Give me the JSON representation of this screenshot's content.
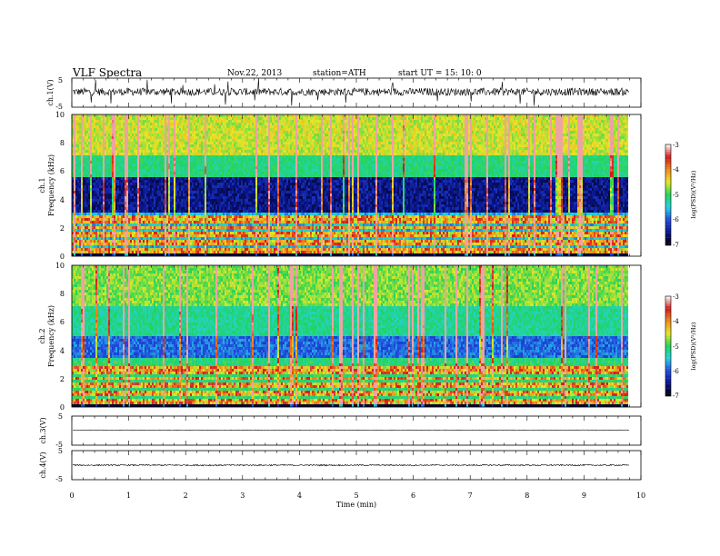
{
  "header": {
    "title": "VLF  Spectra",
    "date": "Nov.22, 2013",
    "station": "station=ATH",
    "start": "start  UT  =    15: 10: 0"
  },
  "colors": {
    "background": "#ffffff",
    "axis": "#000000",
    "colormap": [
      "#000000",
      "#0a1488",
      "#2248e0",
      "#24d2e0",
      "#22d45a",
      "#e6e628",
      "#f08a20",
      "#d21a1a",
      "#ffffff"
    ]
  },
  "chart_data": [
    {
      "type": "line",
      "name": "ch1-waveform",
      "ylabel": "ch.1(V)",
      "ylim": [
        -5,
        5
      ],
      "yticks": [
        "5",
        "-5"
      ],
      "baseline": 0.3,
      "noise_amplitude": 1.3,
      "xlim": [
        0,
        10
      ],
      "data_end": 9.8
    },
    {
      "type": "heatmap",
      "name": "ch1-spectrogram",
      "ylabel_channel": "ch.1",
      "ylabel": "Frequency  (kHz)",
      "ylim": [
        0,
        10
      ],
      "yticks": [
        "0",
        "2",
        "4",
        "6",
        "8",
        "10"
      ],
      "xlim": [
        0,
        10
      ],
      "data_end": 9.8,
      "colorbar": {
        "label": "log(PSD)(V²/Hz)",
        "range": [
          -7,
          -3
        ],
        "ticks": [
          "-3",
          "-4",
          "-5",
          "-6",
          "-7"
        ]
      }
    },
    {
      "type": "heatmap",
      "name": "ch2-spectrogram",
      "ylabel_channel": "ch.2",
      "ylabel": "Frequency  (kHz)",
      "ylim": [
        0,
        10
      ],
      "yticks": [
        "0",
        "2",
        "4",
        "6",
        "8",
        "10"
      ],
      "xlim": [
        0,
        10
      ],
      "data_end": 9.8,
      "colorbar": {
        "label": "log(PSD)(V²/Hz)",
        "range": [
          -7,
          -3
        ],
        "ticks": [
          "-3",
          "-4",
          "-5",
          "-6",
          "-7"
        ]
      }
    },
    {
      "type": "line",
      "name": "ch3-waveform",
      "ylabel": "ch.3(V)",
      "ylim": [
        -5,
        5
      ],
      "yticks": [
        "5",
        "-5"
      ],
      "baseline": 0.2,
      "noise_amplitude": 0.05,
      "xlim": [
        0,
        10
      ],
      "data_end": 9.8
    },
    {
      "type": "line",
      "name": "ch4-waveform",
      "ylabel": "ch.4(V)",
      "ylim": [
        -5,
        5
      ],
      "yticks": [
        "5",
        "-5"
      ],
      "baseline": 0.0,
      "noise_amplitude": 0.25,
      "xlim": [
        0,
        10
      ],
      "data_end": 9.8,
      "xlabel": "Time  (min)",
      "xticks": [
        "0",
        "1",
        "2",
        "3",
        "4",
        "5",
        "6",
        "7",
        "8",
        "9",
        "10"
      ]
    }
  ]
}
